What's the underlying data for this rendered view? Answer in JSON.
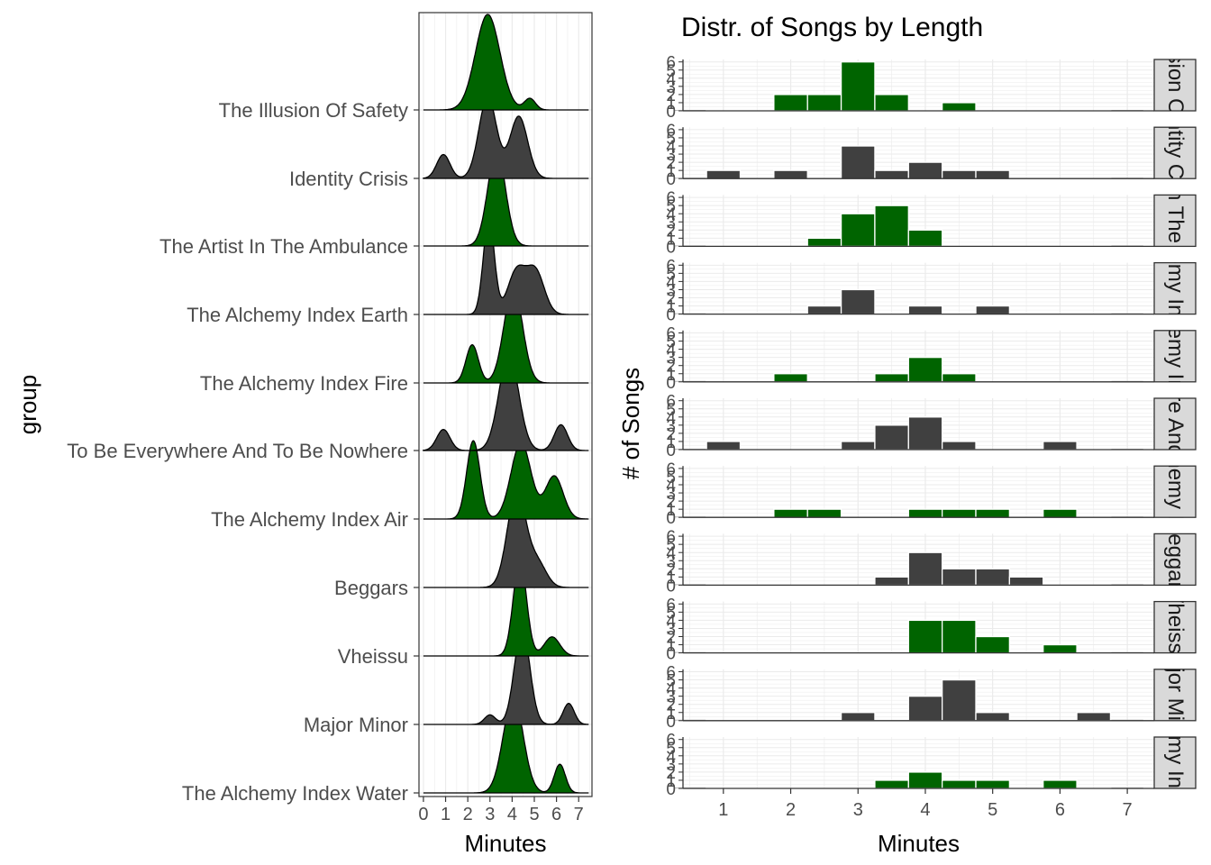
{
  "colors": {
    "highlight": "#006400",
    "dark": "#404040",
    "grid": "#ebebeb",
    "strip_bg": "#d9d9d9"
  },
  "chart_data": [
    {
      "type": "area",
      "subtype": "ridgeline-density",
      "title": "",
      "xlabel": "Minutes",
      "ylabel": "group",
      "xlim": [
        -0.2,
        7.6
      ],
      "x_ticks": [
        0,
        1,
        2,
        3,
        4,
        5,
        6,
        7
      ],
      "grid": true,
      "series": [
        {
          "name": "The Alchemy Index Water",
          "fill": "green",
          "peaks": [
            {
              "x": 4.05,
              "h": 1.0,
              "w": 0.45
            },
            {
              "x": 6.15,
              "h": 0.3,
              "w": 0.25
            }
          ]
        },
        {
          "name": "Major Minor",
          "fill": "dark",
          "peaks": [
            {
              "x": 4.45,
              "h": 1.0,
              "w": 0.35
            },
            {
              "x": 3.0,
              "h": 0.1,
              "w": 0.25
            },
            {
              "x": 6.55,
              "h": 0.22,
              "w": 0.25
            }
          ]
        },
        {
          "name": "Vheissu",
          "fill": "green",
          "peaks": [
            {
              "x": 4.35,
              "h": 1.0,
              "w": 0.3
            },
            {
              "x": 5.8,
              "h": 0.2,
              "w": 0.35
            }
          ]
        },
        {
          "name": "Beggars",
          "fill": "dark",
          "peaks": [
            {
              "x": 4.2,
              "h": 1.0,
              "w": 0.42
            },
            {
              "x": 5.15,
              "h": 0.25,
              "w": 0.4
            }
          ]
        },
        {
          "name": "The Alchemy Index Air",
          "fill": "green",
          "peaks": [
            {
              "x": 2.25,
              "h": 0.82,
              "w": 0.3
            },
            {
              "x": 4.4,
              "h": 0.8,
              "w": 0.45
            },
            {
              "x": 5.9,
              "h": 0.45,
              "w": 0.4
            }
          ]
        },
        {
          "name": "To Be Everywhere And To Be Nowhere",
          "fill": "dark",
          "peaks": [
            {
              "x": 0.9,
              "h": 0.22,
              "w": 0.3
            },
            {
              "x": 3.85,
              "h": 1.0,
              "w": 0.45
            },
            {
              "x": 6.2,
              "h": 0.27,
              "w": 0.3
            }
          ]
        },
        {
          "name": "The Alchemy Index Fire",
          "fill": "green",
          "peaks": [
            {
              "x": 2.2,
              "h": 0.4,
              "w": 0.28
            },
            {
              "x": 4.05,
              "h": 1.0,
              "w": 0.42
            }
          ]
        },
        {
          "name": "The Alchemy Index Earth",
          "fill": "dark",
          "peaks": [
            {
              "x": 2.95,
              "h": 1.0,
              "w": 0.25
            },
            {
              "x": 4.2,
              "h": 0.45,
              "w": 0.4
            },
            {
              "x": 5.05,
              "h": 0.45,
              "w": 0.4
            }
          ]
        },
        {
          "name": "The Artist In The Ambulance",
          "fill": "green",
          "peaks": [
            {
              "x": 3.3,
              "h": 1.0,
              "w": 0.4
            }
          ]
        },
        {
          "name": "Identity Crisis",
          "fill": "dark",
          "peaks": [
            {
              "x": 0.9,
              "h": 0.25,
              "w": 0.3
            },
            {
              "x": 2.9,
              "h": 0.85,
              "w": 0.4
            },
            {
              "x": 4.3,
              "h": 0.65,
              "w": 0.4
            }
          ]
        },
        {
          "name": "The Illusion Of Safety",
          "fill": "green",
          "peaks": [
            {
              "x": 2.9,
              "h": 1.0,
              "w": 0.55
            },
            {
              "x": 4.8,
              "h": 0.12,
              "w": 0.25
            }
          ]
        }
      ]
    },
    {
      "type": "bar",
      "subtype": "faceted-histogram",
      "title": "Distr. of Songs by Length",
      "xlabel": "Minutes",
      "ylabel": "# of Songs",
      "xlim": [
        0.4,
        7.4
      ],
      "ylim": [
        0,
        6.3
      ],
      "x_ticks": [
        1,
        2,
        3,
        4,
        5,
        6,
        7
      ],
      "y_ticks": [
        0,
        1,
        2,
        3,
        4,
        5,
        6
      ],
      "bin_width": 0.5,
      "grid": true,
      "panels": [
        {
          "strip": "The Illusion Of Safety",
          "fill": "green",
          "bins": [
            {
              "x": 2.0,
              "y": 2
            },
            {
              "x": 2.5,
              "y": 2
            },
            {
              "x": 3.0,
              "y": 6
            },
            {
              "x": 3.5,
              "y": 2
            },
            {
              "x": 4.5,
              "y": 1
            }
          ]
        },
        {
          "strip": "Identity Crisis",
          "fill": "dark",
          "bins": [
            {
              "x": 1.0,
              "y": 1
            },
            {
              "x": 2.0,
              "y": 1
            },
            {
              "x": 3.0,
              "y": 4
            },
            {
              "x": 3.5,
              "y": 1
            },
            {
              "x": 4.0,
              "y": 2
            },
            {
              "x": 4.5,
              "y": 1
            },
            {
              "x": 5.0,
              "y": 1
            }
          ]
        },
        {
          "strip": "The Artist In The Ambulance",
          "fill": "green",
          "bins": [
            {
              "x": 2.5,
              "y": 1
            },
            {
              "x": 3.0,
              "y": 4
            },
            {
              "x": 3.5,
              "y": 5
            },
            {
              "x": 4.0,
              "y": 2
            }
          ]
        },
        {
          "strip": "The Alchemy Index Earth",
          "fill": "dark",
          "bins": [
            {
              "x": 2.5,
              "y": 1
            },
            {
              "x": 3.0,
              "y": 3
            },
            {
              "x": 4.0,
              "y": 1
            },
            {
              "x": 5.0,
              "y": 1
            }
          ]
        },
        {
          "strip": "The Alchemy Index Fire",
          "fill": "green",
          "bins": [
            {
              "x": 2.0,
              "y": 1
            },
            {
              "x": 3.5,
              "y": 1
            },
            {
              "x": 4.0,
              "y": 3
            },
            {
              "x": 4.5,
              "y": 1
            }
          ]
        },
        {
          "strip": "To Be Everywhere And To Be Nowhere",
          "fill": "dark",
          "bins": [
            {
              "x": 1.0,
              "y": 1
            },
            {
              "x": 3.0,
              "y": 1
            },
            {
              "x": 3.5,
              "y": 3
            },
            {
              "x": 4.0,
              "y": 4
            },
            {
              "x": 4.5,
              "y": 1
            },
            {
              "x": 6.0,
              "y": 1
            }
          ]
        },
        {
          "strip": "The Alchemy Index Air",
          "fill": "green",
          "bins": [
            {
              "x": 2.0,
              "y": 1
            },
            {
              "x": 2.5,
              "y": 1
            },
            {
              "x": 4.0,
              "y": 1
            },
            {
              "x": 4.5,
              "y": 1
            },
            {
              "x": 5.0,
              "y": 1
            },
            {
              "x": 6.0,
              "y": 1
            }
          ]
        },
        {
          "strip": "Beggars",
          "fill": "dark",
          "bins": [
            {
              "x": 3.5,
              "y": 1
            },
            {
              "x": 4.0,
              "y": 4
            },
            {
              "x": 4.5,
              "y": 2
            },
            {
              "x": 5.0,
              "y": 2
            },
            {
              "x": 5.5,
              "y": 1
            }
          ]
        },
        {
          "strip": "Vheissu",
          "fill": "green",
          "bins": [
            {
              "x": 4.0,
              "y": 4
            },
            {
              "x": 4.5,
              "y": 4
            },
            {
              "x": 5.0,
              "y": 2
            },
            {
              "x": 6.0,
              "y": 1
            }
          ]
        },
        {
          "strip": "Major Minor",
          "fill": "dark",
          "bins": [
            {
              "x": 3.0,
              "y": 1
            },
            {
              "x": 4.0,
              "y": 3
            },
            {
              "x": 4.5,
              "y": 5
            },
            {
              "x": 5.0,
              "y": 1
            },
            {
              "x": 6.5,
              "y": 1
            }
          ]
        },
        {
          "strip": "The Alchemy Index Water",
          "fill": "green",
          "bins": [
            {
              "x": 3.5,
              "y": 1
            },
            {
              "x": 4.0,
              "y": 2
            },
            {
              "x": 4.5,
              "y": 1
            },
            {
              "x": 5.0,
              "y": 1
            },
            {
              "x": 6.0,
              "y": 1
            }
          ]
        }
      ]
    }
  ]
}
